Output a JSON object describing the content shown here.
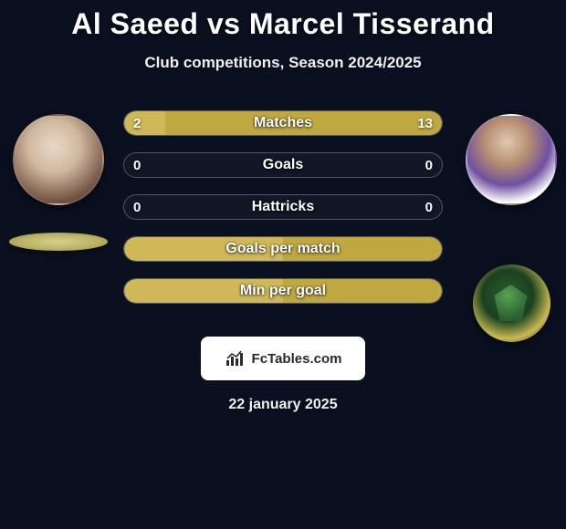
{
  "title": "Al Saeed vs Marcel Tisserand",
  "subtitle": "Club competitions, Season 2024/2025",
  "date": "22 january 2025",
  "branding_text": "FcTables.com",
  "colors": {
    "background": "#0a1020",
    "left_accent": "#d8c060",
    "right_accent": "#c8b850",
    "bar_border": "rgba(200,200,200,0.35)",
    "bar_bg": "rgba(255,255,255,0.03)",
    "text": "#ffffff"
  },
  "players": {
    "left": {
      "name": "Al Saeed"
    },
    "right": {
      "name": "Marcel Tisserand"
    }
  },
  "stats": [
    {
      "label": "Matches",
      "left_value": "2",
      "right_value": "13",
      "left_pct": 13,
      "right_pct": 87,
      "left_color": "#d0b858",
      "right_color": "#c0a840"
    },
    {
      "label": "Goals",
      "left_value": "0",
      "right_value": "0",
      "left_pct": 0,
      "right_pct": 0,
      "left_color": "#d0b858",
      "right_color": "#c0a840"
    },
    {
      "label": "Hattricks",
      "left_value": "0",
      "right_value": "0",
      "left_pct": 0,
      "right_pct": 0,
      "left_color": "#d0b858",
      "right_color": "#c0a840"
    },
    {
      "label": "Goals per match",
      "left_value": "",
      "right_value": "",
      "left_pct": 50,
      "right_pct": 50,
      "left_color": "#d0b858",
      "right_color": "#c0a840"
    },
    {
      "label": "Min per goal",
      "left_value": "",
      "right_value": "",
      "left_pct": 50,
      "right_pct": 50,
      "left_color": "#d0b858",
      "right_color": "#c0a840"
    }
  ]
}
